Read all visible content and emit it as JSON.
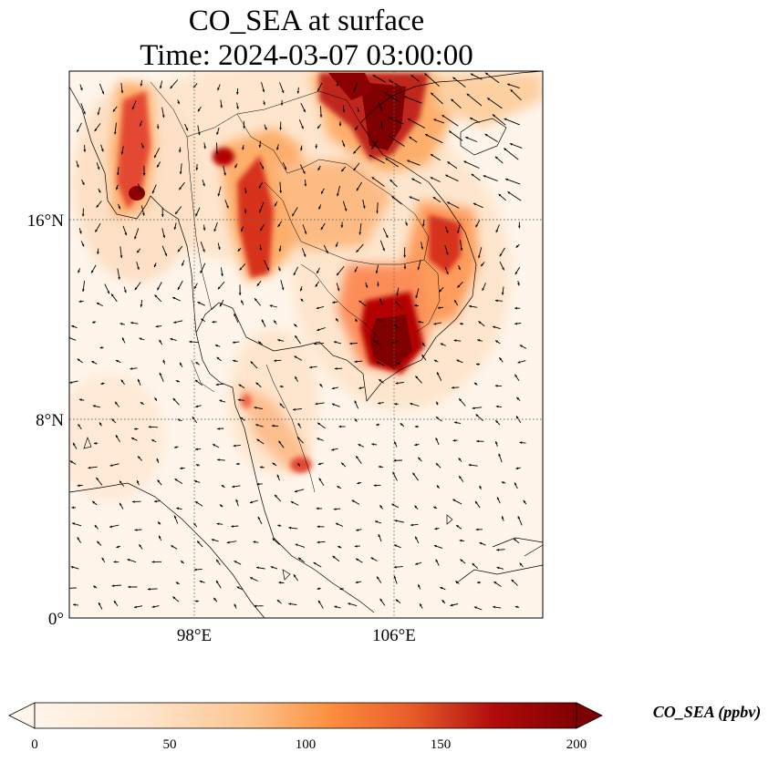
{
  "title": {
    "line1": "CO_SEA at surface",
    "line2": "Time: 2024-03-07 03:00:00"
  },
  "map": {
    "lat_ticks": [
      {
        "value": 16,
        "label": "16°N"
      },
      {
        "value": 8,
        "label": "8°N"
      },
      {
        "value": 0,
        "label": "0°"
      }
    ],
    "lon_ticks": [
      {
        "value": 98,
        "label": "98°E"
      },
      {
        "value": 106,
        "label": "106°E"
      }
    ],
    "extent": {
      "lon_min": 93,
      "lon_max": 112,
      "lat_min": 0,
      "lat_max": 22
    },
    "gridlines": "dotted gray"
  },
  "colorbar": {
    "label": "CO_SEA (ppbv)",
    "ticks": [
      "0",
      "50",
      "100",
      "150",
      "200"
    ],
    "min": 0,
    "max": 200,
    "colormap": [
      "#fff5eb",
      "#fdd0a2",
      "#fd8d3c",
      "#d94801",
      "#a50f15",
      "#7f0000"
    ],
    "extend": "both"
  },
  "colors": {
    "high_plume": "#7f0000",
    "background": "#fff5eb"
  }
}
